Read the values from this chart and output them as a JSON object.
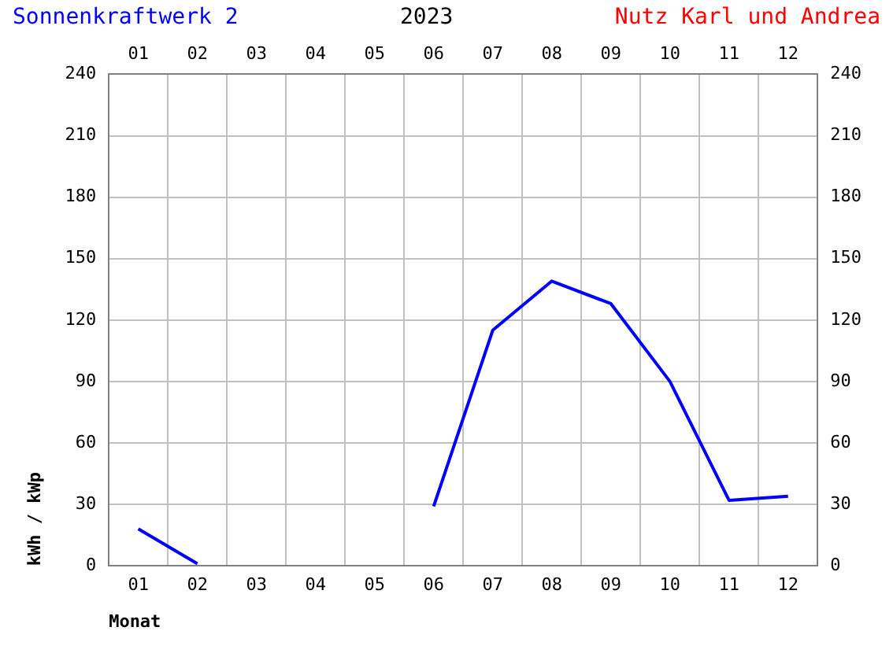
{
  "chart_data": {
    "type": "line",
    "title": "Sonnenkraftwerk 2",
    "subtitle": "2023",
    "annotations": [
      "Nutz Karl und Andrea"
    ],
    "xlabel": "Monat",
    "ylabel": "kWh / kWp",
    "categories": [
      "01",
      "02",
      "03",
      "04",
      "05",
      "06",
      "07",
      "08",
      "09",
      "10",
      "11",
      "12"
    ],
    "series": [
      {
        "color": "#0000ff",
        "values": [
          18,
          1,
          null,
          null,
          null,
          29,
          115,
          139,
          128,
          90,
          32,
          34
        ]
      }
    ],
    "ylim": [
      0,
      240
    ],
    "yticks": [
      0,
      30,
      60,
      90,
      120,
      150,
      180,
      210,
      240
    ],
    "y2lim": [
      0,
      240
    ],
    "y2ticks": [
      0,
      30,
      60,
      90,
      120,
      150,
      180,
      210,
      240
    ],
    "grid": true,
    "legend": false,
    "marker": "none",
    "line_style": "solid"
  }
}
